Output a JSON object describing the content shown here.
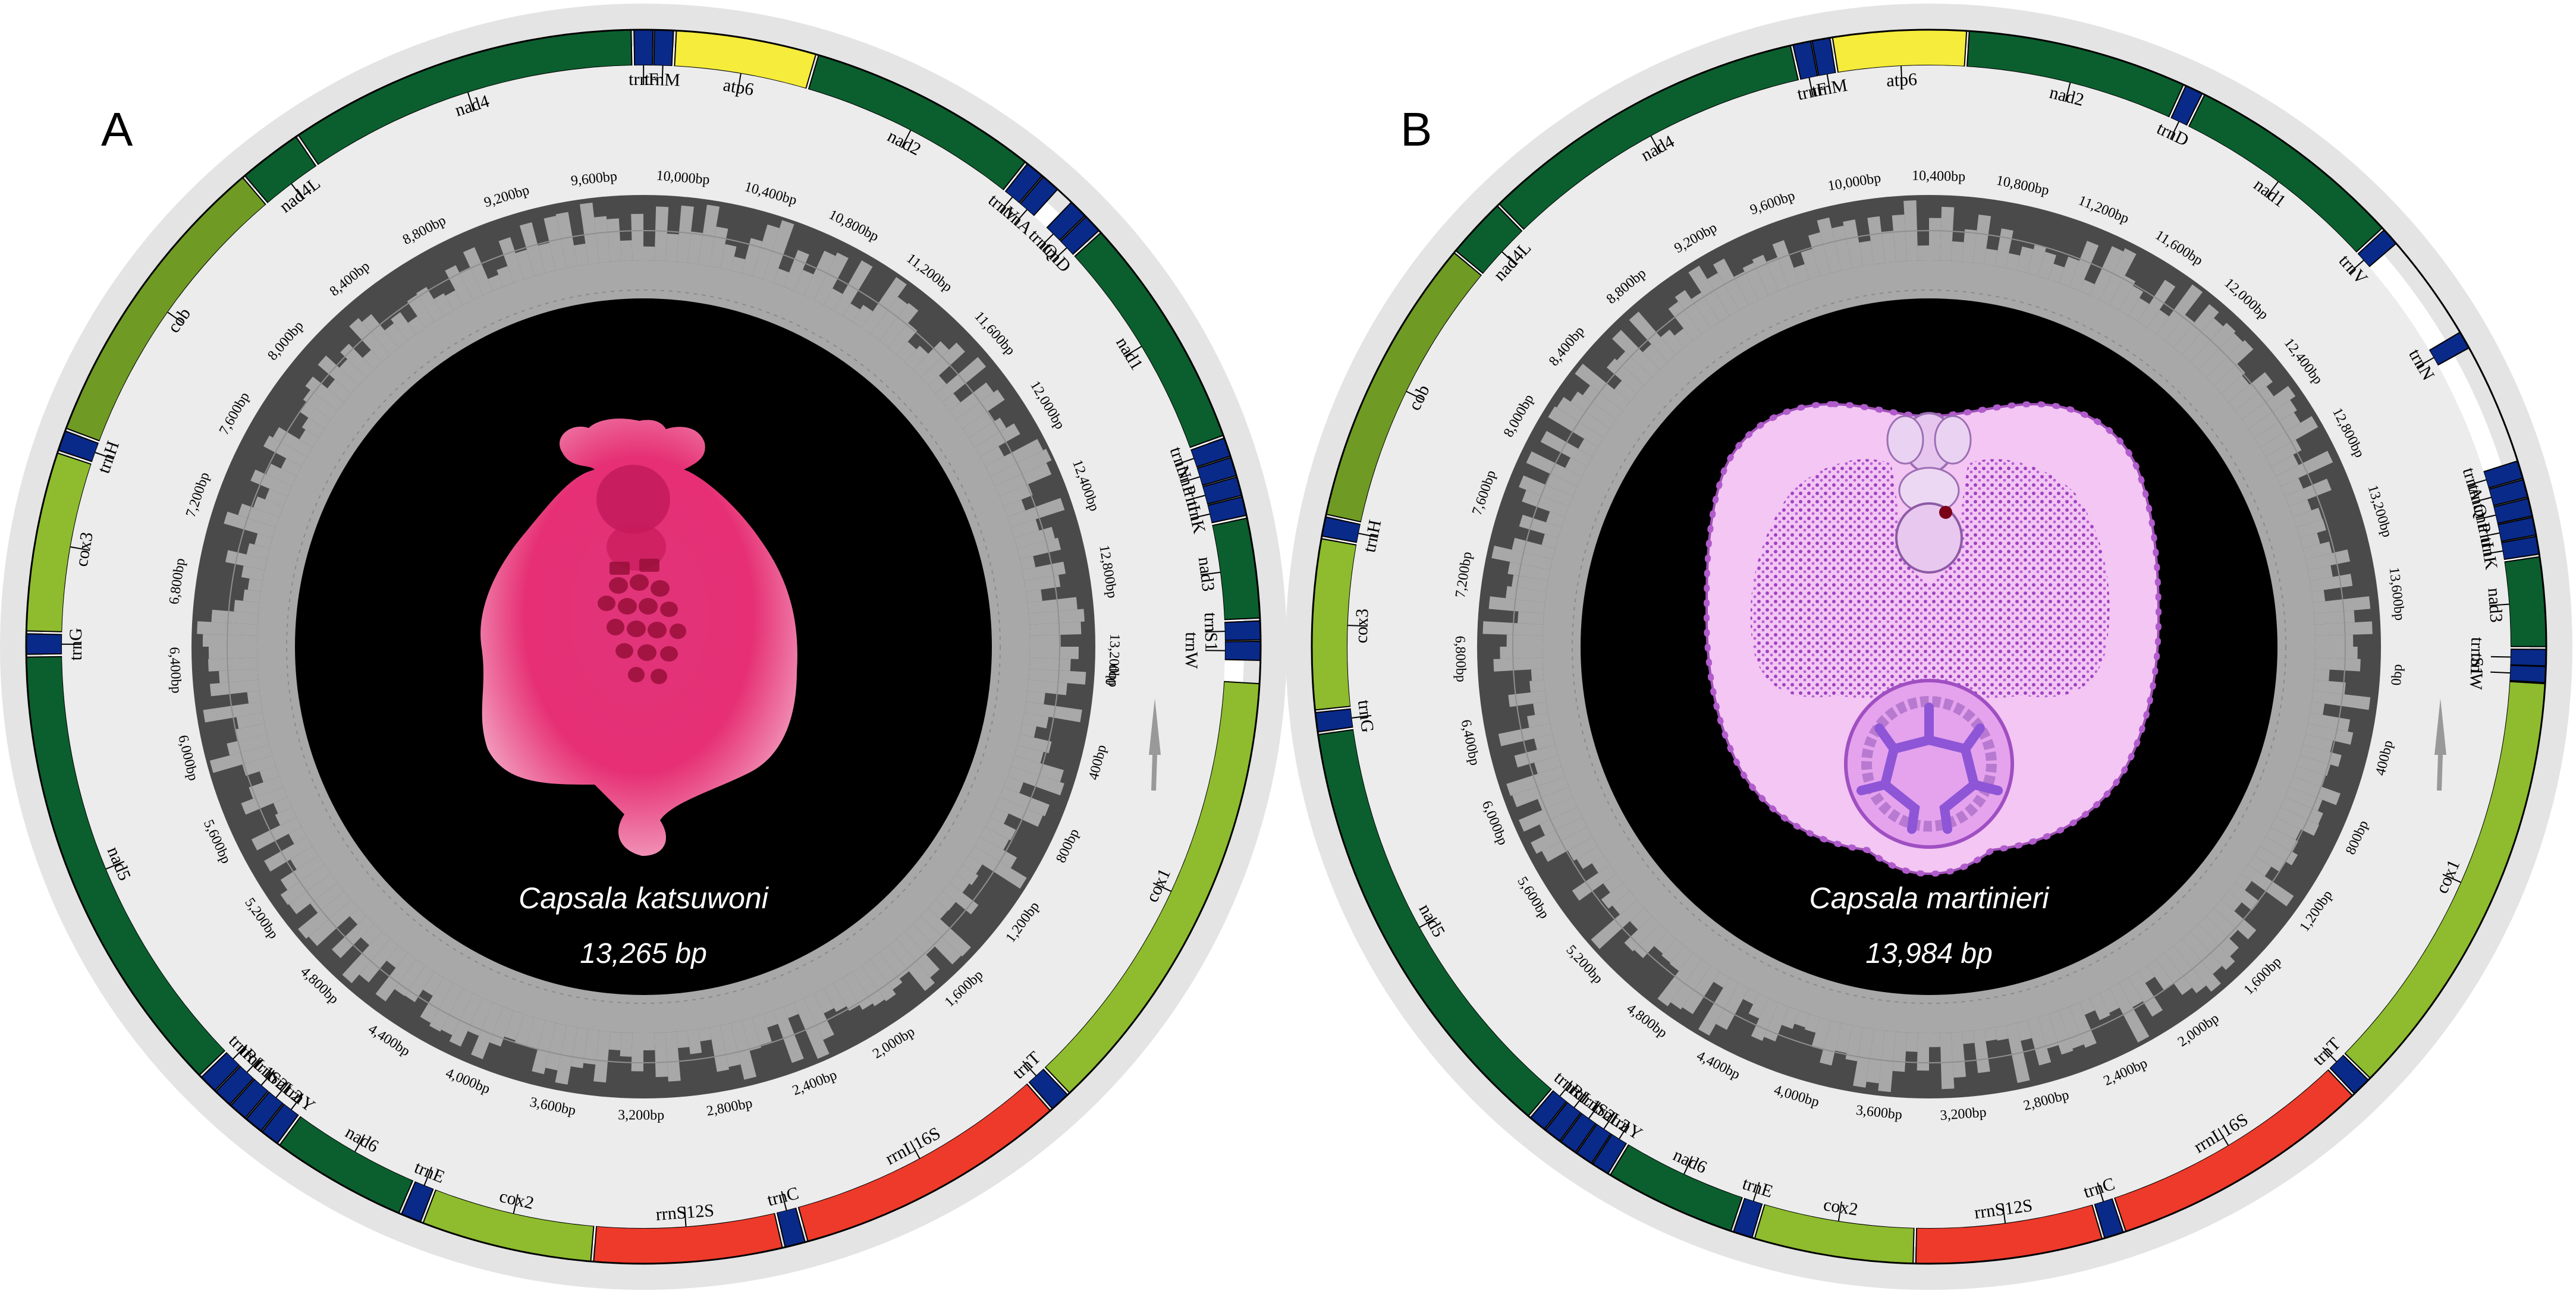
{
  "colors": {
    "outer_ring": "#e4e4e4",
    "annotation_ring": "#ececec",
    "nad_genes": "#0b5f2e",
    "cox_genes": "#8ebc2e",
    "cob_gene": "#6f9a24",
    "atp_gene": "#f5ec3b",
    "rrn_genes": "#ee3a2a",
    "trn_genes": "#0a2a8a",
    "gc_dark": "#4a4a4a",
    "gc_light": "#a8a8a8",
    "center": "#000000"
  },
  "panels": [
    {
      "letter": "A",
      "species": "Capsala katsuwoni",
      "size_label": "13,265 bp",
      "length": 13265,
      "image": "photo",
      "ticks": [
        "0bp",
        "400bp",
        "800bp",
        "1,200bp",
        "1,600bp",
        "2,000bp",
        "2,400bp",
        "2,800bp",
        "3,200bp",
        "3,600bp",
        "4,000bp",
        "4,400bp",
        "4,800bp",
        "5,200bp",
        "5,600bp",
        "6,000bp",
        "6,400bp",
        "6,800bp",
        "7,200bp",
        "7,600bp",
        "8,000bp",
        "8,400bp",
        "8,800bp",
        "9,200bp",
        "9,600bp",
        "10,000bp",
        "10,400bp",
        "10,800bp",
        "11,200bp",
        "11,600bp",
        "12,000bp",
        "12,400bp",
        "12,800bp",
        "13,200bp"
      ],
      "genes": [
        {
          "name": "cox1",
          "start": 0,
          "end": 1580,
          "type": "cox"
        },
        {
          "name": "trnT",
          "start": 1590,
          "end": 1660,
          "type": "trn"
        },
        {
          "name": "rrnL16S",
          "start": 1670,
          "end": 2620,
          "type": "rrn"
        },
        {
          "name": "trnC",
          "start": 2630,
          "end": 2700,
          "type": "trn"
        },
        {
          "name": "rrnS12S",
          "start": 2710,
          "end": 3360,
          "type": "rrn"
        },
        {
          "name": "cox2",
          "start": 3370,
          "end": 3960,
          "type": "cox"
        },
        {
          "name": "trnE",
          "start": 3970,
          "end": 4040,
          "type": "trn"
        },
        {
          "name": "nad6",
          "start": 4050,
          "end": 4520,
          "type": "nad"
        },
        {
          "name": "trnY",
          "start": 4530,
          "end": 4595,
          "type": "trn"
        },
        {
          "name": "trnL2",
          "start": 4600,
          "end": 4665,
          "type": "trn"
        },
        {
          "name": "trnS2",
          "start": 4670,
          "end": 4735,
          "type": "trn"
        },
        {
          "name": "trnL1",
          "start": 4740,
          "end": 4805,
          "type": "trn"
        },
        {
          "name": "trnR",
          "start": 4810,
          "end": 4875,
          "type": "trn"
        },
        {
          "name": "nad5",
          "start": 4885,
          "end": 6470,
          "type": "nad"
        },
        {
          "name": "trnG",
          "start": 6480,
          "end": 6550,
          "type": "trn"
        },
        {
          "name": "cox3",
          "start": 6560,
          "end": 7180,
          "type": "cox"
        },
        {
          "name": "trnH",
          "start": 7190,
          "end": 7260,
          "type": "trn"
        },
        {
          "name": "cob",
          "start": 7270,
          "end": 8330,
          "type": "cob"
        },
        {
          "name": "nad4L",
          "start": 8340,
          "end": 8560,
          "type": "nad"
        },
        {
          "name": "nad4",
          "start": 8570,
          "end": 9780,
          "type": "nad"
        },
        {
          "name": "trnF",
          "start": 9790,
          "end": 9855,
          "type": "trn"
        },
        {
          "name": "trnM",
          "start": 9860,
          "end": 9925,
          "type": "trn"
        },
        {
          "name": "atp6",
          "start": 9935,
          "end": 10420,
          "type": "atp"
        },
        {
          "name": "nad2",
          "start": 10430,
          "end": 11230,
          "type": "nad"
        },
        {
          "name": "trnV",
          "start": 11240,
          "end": 11305,
          "type": "trn"
        },
        {
          "name": "trnA",
          "start": 11310,
          "end": 11375,
          "type": "trn"
        },
        {
          "name": "trnQ",
          "start": 11440,
          "end": 11505,
          "type": "trn"
        },
        {
          "name": "trnD",
          "start": 11510,
          "end": 11575,
          "type": "trn"
        },
        {
          "name": "nad1",
          "start": 11585,
          "end": 12400,
          "type": "nad"
        },
        {
          "name": "trnN",
          "start": 12410,
          "end": 12475,
          "type": "trn"
        },
        {
          "name": "trnP",
          "start": 12480,
          "end": 12545,
          "type": "trn"
        },
        {
          "name": "trnI",
          "start": 12550,
          "end": 12615,
          "type": "trn"
        },
        {
          "name": "trnK",
          "start": 12620,
          "end": 12685,
          "type": "trn"
        },
        {
          "name": "nad3",
          "start": 12695,
          "end": 13040,
          "type": "nad"
        },
        {
          "name": "trnS1",
          "start": 13050,
          "end": 13115,
          "type": "trn"
        },
        {
          "name": "trnW",
          "start": 13120,
          "end": 13185,
          "type": "trn"
        }
      ]
    },
    {
      "letter": "B",
      "species": "Capsala martinieri",
      "size_label": "13,984 bp",
      "length": 13984,
      "image": "illustration",
      "ticks": [
        "0bp",
        "400bp",
        "800bp",
        "1,200bp",
        "1,600bp",
        "2,000bp",
        "2,400bp",
        "2,800bp",
        "3,200bp",
        "3,600bp",
        "4,000bp",
        "4,400bp",
        "4,800bp",
        "5,200bp",
        "5,600bp",
        "6,000bp",
        "6,400bp",
        "6,800bp",
        "7,200bp",
        "7,600bp",
        "8,000bp",
        "8,400bp",
        "8,800bp",
        "9,200bp",
        "9,600bp",
        "10,000bp",
        "10,400bp",
        "10,800bp",
        "11,200bp",
        "11,600bp",
        "12,000bp",
        "12,400bp",
        "12,800bp",
        "13,200bp",
        "13,600bp"
      ],
      "genes": [
        {
          "name": "cox1",
          "start": 0,
          "end": 1590,
          "type": "cox"
        },
        {
          "name": "trnT",
          "start": 1600,
          "end": 1670,
          "type": "trn"
        },
        {
          "name": "rrnL16S",
          "start": 1680,
          "end": 2640,
          "type": "rrn"
        },
        {
          "name": "trnC",
          "start": 2650,
          "end": 2720,
          "type": "trn"
        },
        {
          "name": "rrnS12S",
          "start": 2730,
          "end": 3410,
          "type": "rrn"
        },
        {
          "name": "cox2",
          "start": 3420,
          "end": 4000,
          "type": "cox"
        },
        {
          "name": "trnE",
          "start": 4010,
          "end": 4080,
          "type": "trn"
        },
        {
          "name": "nad6",
          "start": 4090,
          "end": 4570,
          "type": "nad"
        },
        {
          "name": "trnY",
          "start": 4580,
          "end": 4645,
          "type": "trn"
        },
        {
          "name": "trnL2",
          "start": 4650,
          "end": 4715,
          "type": "trn"
        },
        {
          "name": "trnS2",
          "start": 4720,
          "end": 4785,
          "type": "trn"
        },
        {
          "name": "trnL1",
          "start": 4790,
          "end": 4855,
          "type": "trn"
        },
        {
          "name": "trnR",
          "start": 4860,
          "end": 4925,
          "type": "trn"
        },
        {
          "name": "nad5",
          "start": 4935,
          "end": 6540,
          "type": "nad"
        },
        {
          "name": "trnG",
          "start": 6550,
          "end": 6620,
          "type": "trn"
        },
        {
          "name": "cox3",
          "start": 6630,
          "end": 7250,
          "type": "cox"
        },
        {
          "name": "trnH",
          "start": 7260,
          "end": 7330,
          "type": "trn"
        },
        {
          "name": "cob",
          "start": 7340,
          "end": 8400,
          "type": "cob"
        },
        {
          "name": "nad4L",
          "start": 8410,
          "end": 8630,
          "type": "nad"
        },
        {
          "name": "nad4",
          "start": 8640,
          "end": 9850,
          "type": "nad"
        },
        {
          "name": "trnF",
          "start": 9860,
          "end": 9925,
          "type": "trn"
        },
        {
          "name": "trnM",
          "start": 9930,
          "end": 9995,
          "type": "trn"
        },
        {
          "name": "atp6",
          "start": 10005,
          "end": 10490,
          "type": "atp"
        },
        {
          "name": "nad2",
          "start": 10500,
          "end": 11300,
          "type": "nad"
        },
        {
          "name": "trnD",
          "start": 11310,
          "end": 11375,
          "type": "trn"
        },
        {
          "name": "nad1",
          "start": 11385,
          "end": 12190,
          "type": "nad"
        },
        {
          "name": "trnV",
          "start": 12200,
          "end": 12265,
          "type": "trn"
        },
        {
          "name": "trnN",
          "start": 12660,
          "end": 12725,
          "type": "trn"
        },
        {
          "name": "trnA",
          "start": 13170,
          "end": 13235,
          "type": "trn"
        },
        {
          "name": "trnQ",
          "start": 13240,
          "end": 13305,
          "type": "trn"
        },
        {
          "name": "trnP",
          "start": 13310,
          "end": 13375,
          "type": "trn"
        },
        {
          "name": "trnI",
          "start": 13380,
          "end": 13445,
          "type": "trn"
        },
        {
          "name": "trnK",
          "start": 13450,
          "end": 13515,
          "type": "trn"
        },
        {
          "name": "nad3",
          "start": 13525,
          "end": 13850,
          "type": "nad"
        },
        {
          "name": "trnS1",
          "start": 13860,
          "end": 13920,
          "type": "trn"
        },
        {
          "name": "trnW",
          "start": 13922,
          "end": 13980,
          "type": "trn"
        }
      ]
    }
  ]
}
